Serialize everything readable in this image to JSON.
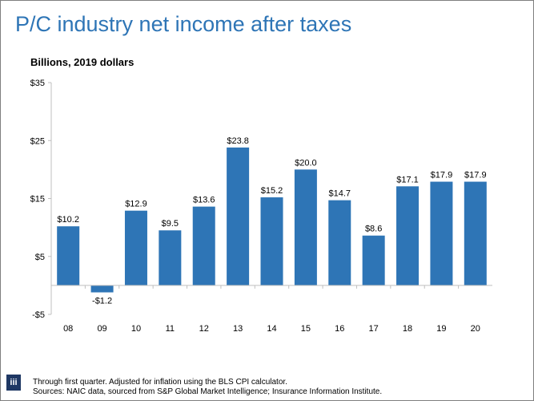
{
  "title": "P/C industry net income after taxes",
  "subtitle": "Billions, 2019 dollars",
  "footer": {
    "note": "Through first quarter. Adjusted for inflation using the BLS CPI calculator.",
    "sources": "Sources: NAIC data, sourced from S&P Global Market Intelligence; Insurance Information Institute.",
    "logo_icon": "iii-logo-icon"
  },
  "chart_data": {
    "type": "bar",
    "title": "P/C industry net income after taxes",
    "ylabel": "Billions, 2019 dollars",
    "xlabel": "",
    "categories": [
      "08",
      "09",
      "10",
      "11",
      "12",
      "13",
      "14",
      "15",
      "16",
      "17",
      "18",
      "19",
      "20"
    ],
    "values": [
      10.2,
      -1.2,
      12.9,
      9.5,
      13.6,
      23.8,
      15.2,
      20.0,
      14.7,
      8.6,
      17.1,
      17.9,
      17.9
    ],
    "data_labels": [
      "$10.2",
      "-$1.2",
      "$12.9",
      "$9.5",
      "$13.6",
      "$23.8",
      "$15.2",
      "$20.0",
      "$14.7",
      "$8.6",
      "$17.1",
      "$17.9",
      "$17.9"
    ],
    "ylim": [
      -5,
      35
    ],
    "yticks": [
      -5,
      5,
      15,
      25,
      35
    ],
    "ytick_labels": [
      "-$5",
      "$5",
      "$15",
      "$25",
      "$35"
    ],
    "grid": false,
    "legend": "none",
    "bar_color": "#2e75b6"
  }
}
